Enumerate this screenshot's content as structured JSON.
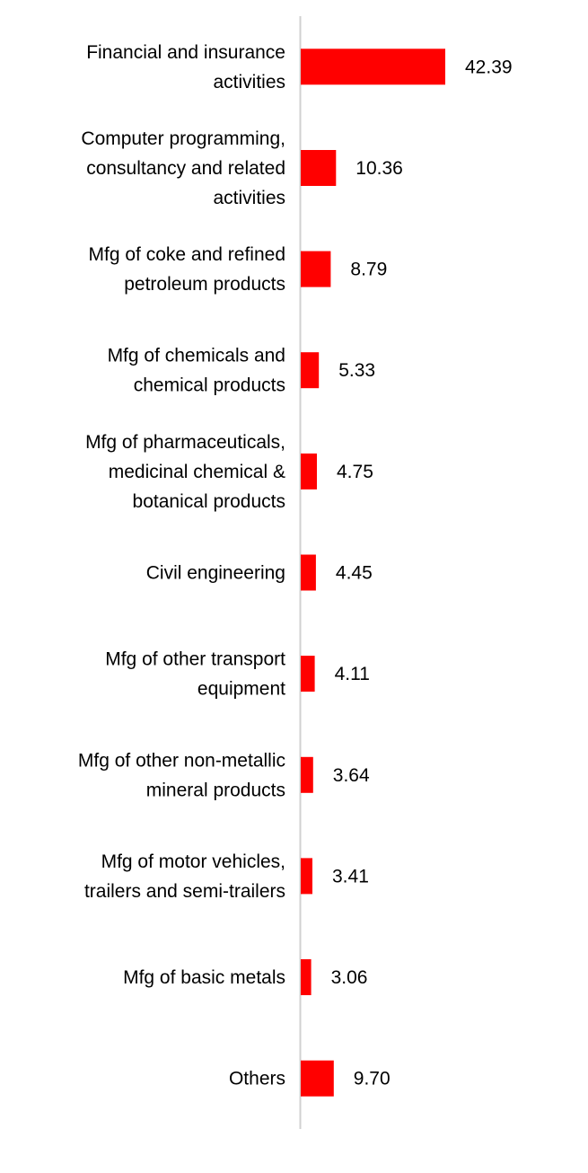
{
  "chart_data": {
    "type": "bar",
    "orientation": "horizontal",
    "categories": [
      "Financial and insurance activities",
      "Computer programming, consultancy and related activities",
      "Mfg of coke and refined petroleum products",
      "Mfg of chemicals and chemical products",
      "Mfg of pharmaceuticals, medicinal chemical & botanical products",
      "Civil engineering",
      "Mfg of other transport equipment",
      "Mfg of other non-metallic mineral products",
      "Mfg of motor vehicles, trailers and semi-trailers",
      "Mfg of basic metals",
      "Others"
    ],
    "label_lines": [
      [
        "Financial and insurance",
        "activities"
      ],
      [
        "Computer programming,",
        "consultancy and related",
        "activities"
      ],
      [
        "Mfg of coke and refined",
        "petroleum products"
      ],
      [
        "Mfg of chemicals and",
        "chemical products"
      ],
      [
        "Mfg of pharmaceuticals,",
        "medicinal chemical &",
        "botanical products"
      ],
      [
        "Civil engineering"
      ],
      [
        "Mfg of other transport",
        "equipment"
      ],
      [
        "Mfg of other non-metallic",
        "mineral products"
      ],
      [
        "Mfg of motor vehicles,",
        "trailers and semi-trailers"
      ],
      [
        "Mfg of basic metals"
      ],
      [
        "Others"
      ]
    ],
    "values": [
      42.39,
      10.36,
      8.79,
      5.33,
      4.75,
      4.45,
      4.11,
      3.64,
      3.41,
      3.06,
      9.7
    ],
    "value_labels": [
      "42.39",
      "10.36",
      "8.79",
      "5.33",
      "4.75",
      "4.45",
      "4.11",
      "3.64",
      "3.41",
      "3.06",
      "9.70"
    ],
    "bar_color": "#ff0000",
    "axis_color": "#d0d0d0",
    "xlim": [
      0,
      42.39
    ],
    "grid": false,
    "legend": "none",
    "title": "",
    "xlabel": "",
    "ylabel": ""
  }
}
